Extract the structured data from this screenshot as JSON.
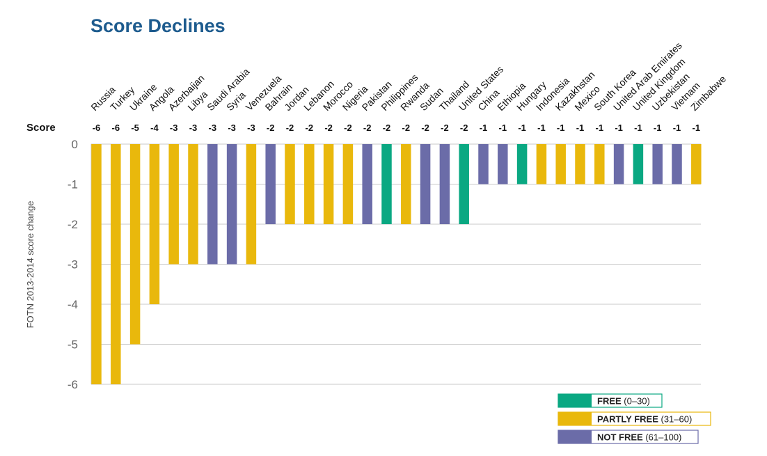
{
  "chart_data": {
    "type": "bar",
    "title": "Score Declines",
    "ylabel": "FOTN 2013-2014 score change",
    "score_header": "Score",
    "ylim": [
      -6,
      0
    ],
    "yticks": [
      "0",
      "-1",
      "-2",
      "-3",
      "-4",
      "-5",
      "-6"
    ],
    "grid": true,
    "legend_position": "bottom-right",
    "categories": [
      "Russia",
      "Turkey",
      "Ukraine",
      "Angola",
      "Azerbaijan",
      "Libya",
      "Saudi Arabia",
      "Syria",
      "Venezuela",
      "Bahrain",
      "Jordan",
      "Lebanon",
      "Morocco",
      "Nigeria",
      "Pakistan",
      "Philippines",
      "Rwanda",
      "Sudan",
      "Thailand",
      "United States",
      "China",
      "Ethiopia",
      "Hungary",
      "Indonesia",
      "Kazakhstan",
      "Mexico",
      "South Korea",
      "United Arab Emirates",
      "United Kingdom",
      "Uzbekistan",
      "Vietnam",
      "Zimbabwe"
    ],
    "values": [
      -6,
      -6,
      -5,
      -4,
      -3,
      -3,
      -3,
      -3,
      -3,
      -2,
      -2,
      -2,
      -2,
      -2,
      -2,
      -2,
      -2,
      -2,
      -2,
      -2,
      -1,
      -1,
      -1,
      -1,
      -1,
      -1,
      -1,
      -1,
      -1,
      -1,
      -1,
      -1
    ],
    "value_labels": [
      "-6",
      "-6",
      "-5",
      "-4",
      "-3",
      "-3",
      "-3",
      "-3",
      "-3",
      "-2",
      "-2",
      "-2",
      "-2",
      "-2",
      "-2",
      "-2",
      "-2",
      "-2",
      "-2",
      "-2",
      "-1",
      "-1",
      "-1",
      "-1",
      "-1",
      "-1",
      "-1",
      "-1",
      "-1",
      "-1",
      "-1",
      "-1"
    ],
    "status": [
      "partly",
      "partly",
      "partly",
      "partly",
      "partly",
      "partly",
      "not",
      "not",
      "partly",
      "not",
      "partly",
      "partly",
      "partly",
      "partly",
      "not",
      "free",
      "partly",
      "not",
      "not",
      "free",
      "not",
      "not",
      "free",
      "partly",
      "partly",
      "partly",
      "partly",
      "not",
      "free",
      "not",
      "not",
      "partly"
    ],
    "legend": [
      {
        "key": "free",
        "label": "FREE",
        "range": "(0–30)",
        "color": "#0aa882"
      },
      {
        "key": "partly",
        "label": "PARTLY FREE",
        "range": "(31–60)",
        "color": "#e9b80c"
      },
      {
        "key": "not",
        "label": "NOT FREE",
        "range": "(61–100)",
        "color": "#6b6ca8"
      }
    ]
  }
}
